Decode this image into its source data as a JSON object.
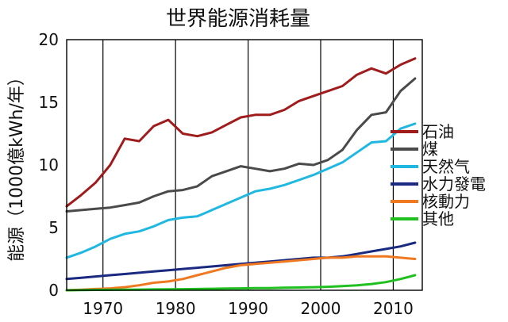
{
  "chart_data": {
    "type": "line",
    "title": "世界能源消耗量",
    "xlabel": "",
    "ylabel": "能源（1000億kWh/年）",
    "xlim": [
      1965,
      2014
    ],
    "ylim": [
      0,
      20
    ],
    "x_ticks": [
      1970,
      1980,
      1990,
      2000,
      2010
    ],
    "y_ticks": [
      0,
      5,
      10,
      15,
      20
    ],
    "grid": "vertical",
    "legend_position": "right",
    "x": [
      1965,
      1967,
      1969,
      1971,
      1973,
      1975,
      1977,
      1979,
      1981,
      1983,
      1985,
      1987,
      1989,
      1991,
      1993,
      1995,
      1997,
      1999,
      2001,
      2003,
      2005,
      2007,
      2009,
      2011,
      2013
    ],
    "series": [
      {
        "name": "石油",
        "color": "#a01c1c",
        "values": [
          6.7,
          7.6,
          8.6,
          10.0,
          12.1,
          11.9,
          13.1,
          13.6,
          12.5,
          12.3,
          12.6,
          13.2,
          13.8,
          14.0,
          14.0,
          14.4,
          15.1,
          15.5,
          15.9,
          16.3,
          17.2,
          17.7,
          17.3,
          18.0,
          18.5
        ]
      },
      {
        "name": "煤",
        "color": "#4a4a4a",
        "values": [
          6.3,
          6.4,
          6.5,
          6.6,
          6.8,
          7.0,
          7.5,
          7.9,
          8.0,
          8.3,
          9.1,
          9.5,
          9.9,
          9.7,
          9.5,
          9.7,
          10.1,
          10.0,
          10.4,
          11.2,
          12.8,
          14.0,
          14.2,
          15.9,
          16.9
        ]
      },
      {
        "name": "天然气",
        "color": "#20b8e0",
        "values": [
          2.6,
          3.0,
          3.5,
          4.1,
          4.5,
          4.7,
          5.1,
          5.6,
          5.8,
          5.9,
          6.4,
          6.9,
          7.4,
          7.9,
          8.1,
          8.4,
          8.8,
          9.2,
          9.7,
          10.2,
          11.0,
          11.8,
          11.9,
          12.9,
          13.3
        ]
      },
      {
        "name": "水力發電",
        "color": "#1a2a80",
        "values": [
          0.9,
          1.0,
          1.1,
          1.2,
          1.3,
          1.4,
          1.5,
          1.6,
          1.7,
          1.8,
          1.9,
          2.0,
          2.1,
          2.2,
          2.3,
          2.4,
          2.5,
          2.6,
          2.6,
          2.7,
          2.9,
          3.1,
          3.3,
          3.5,
          3.8
        ]
      },
      {
        "name": "核動力",
        "color": "#f07820",
        "values": [
          0.0,
          0.05,
          0.1,
          0.15,
          0.25,
          0.4,
          0.6,
          0.7,
          0.9,
          1.2,
          1.5,
          1.8,
          2.0,
          2.1,
          2.2,
          2.3,
          2.4,
          2.5,
          2.6,
          2.6,
          2.7,
          2.7,
          2.7,
          2.6,
          2.5
        ]
      },
      {
        "name": "其他",
        "color": "#20c020",
        "values": [
          0.0,
          0.02,
          0.03,
          0.04,
          0.05,
          0.06,
          0.07,
          0.08,
          0.09,
          0.1,
          0.12,
          0.14,
          0.15,
          0.17,
          0.18,
          0.2,
          0.22,
          0.25,
          0.28,
          0.33,
          0.4,
          0.5,
          0.65,
          0.9,
          1.2
        ]
      }
    ]
  }
}
